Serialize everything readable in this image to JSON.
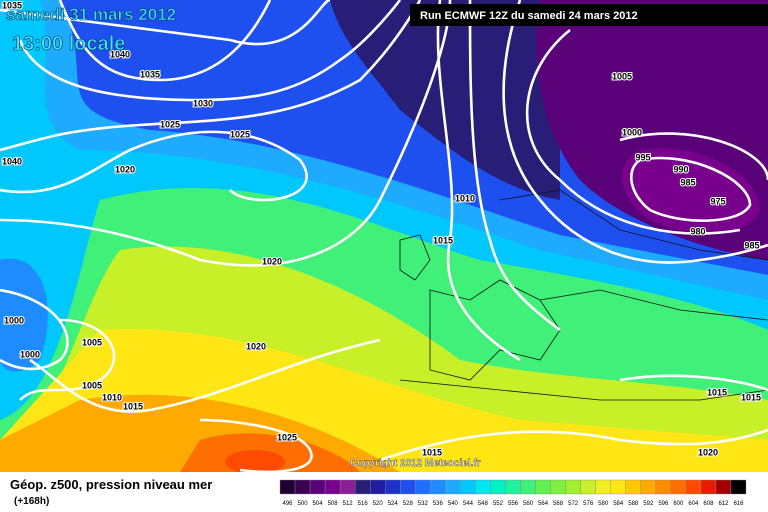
{
  "header": {
    "date": "samedi 31 mars 2012",
    "time": "13:00 locale",
    "run": "Run ECMWF 12Z du samedi 24 mars 2012"
  },
  "isobar_labels": [
    1035,
    1040,
    1035,
    1030,
    1025,
    1025,
    1040,
    1020,
    1020,
    1010,
    1015,
    1005,
    1000,
    995,
    990,
    985,
    975,
    980,
    985,
    1000,
    1000,
    1005,
    1020,
    1005,
    1010,
    1015,
    1025,
    1015,
    1015,
    1015,
    1020
  ],
  "copyright": "Copyright 2012 Meteociel.fr",
  "legend": {
    "title": "Géop. z500, pression niveau mer",
    "lead_time": "(+168h)",
    "levels": [
      496,
      500,
      504,
      508,
      512,
      516,
      520,
      524,
      528,
      532,
      536,
      540,
      544,
      548,
      552,
      556,
      560,
      564,
      568,
      572,
      576,
      580,
      584,
      588,
      592,
      596,
      600,
      604,
      608,
      612,
      616
    ],
    "colors": [
      "#200030",
      "#3c0050",
      "#5a0078",
      "#78008c",
      "#8c1e96",
      "#281e78",
      "#1e1ea0",
      "#1e32c8",
      "#1e50f0",
      "#1e6eff",
      "#1e8cff",
      "#1eaaff",
      "#00c8ff",
      "#00e6f0",
      "#00f0c8",
      "#20f0a0",
      "#40f078",
      "#60f050",
      "#80f040",
      "#a0f030",
      "#c8f028",
      "#f0f020",
      "#ffe614",
      "#ffc800",
      "#ffaa00",
      "#ff8c00",
      "#ff6e00",
      "#ff4b00",
      "#e61e00",
      "#a00000",
      "#000000"
    ]
  }
}
